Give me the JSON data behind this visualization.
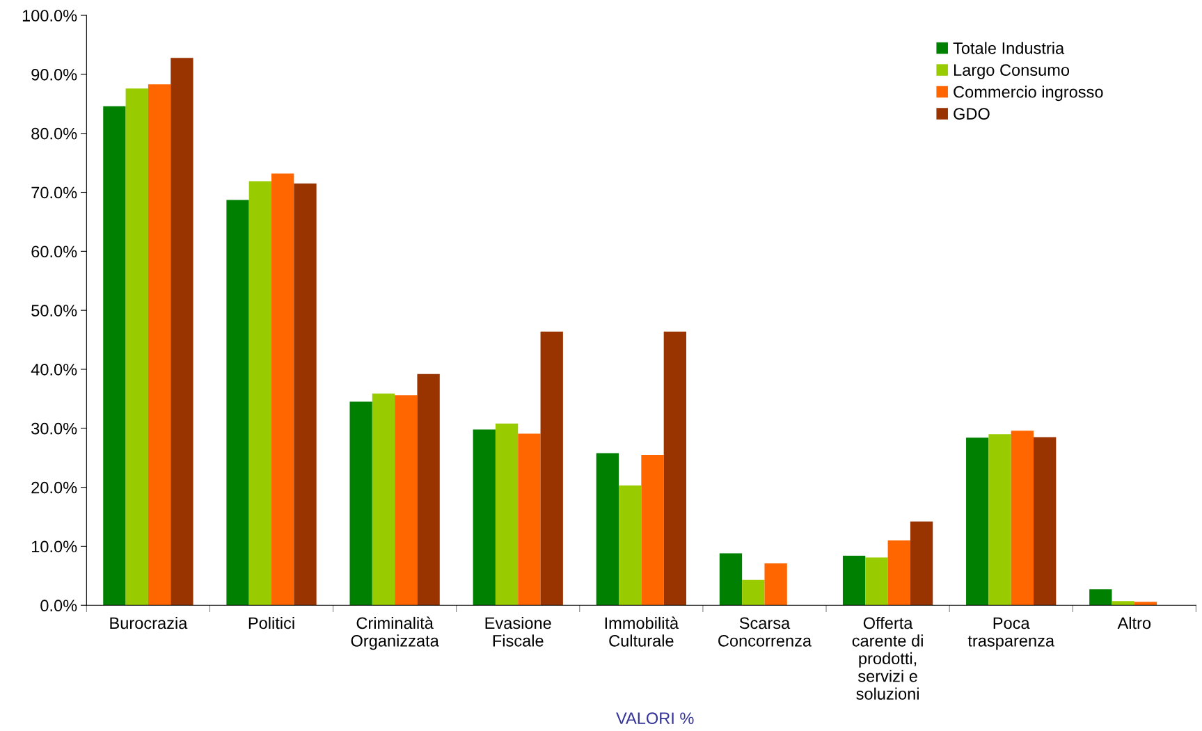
{
  "chart_data": {
    "type": "bar",
    "categories": [
      "Burocrazia",
      "Politici",
      "Criminalità\nOrganizzata",
      "Evasione\nFiscale",
      "Immobilità\nCulturale",
      "Scarsa\nConcorrenza",
      "Offerta\ncarente di\nprodotti,\nservizi e\nsoluzioni",
      "Poca\ntrasparenza",
      "Altro"
    ],
    "series": [
      {
        "name": "Totale Industria",
        "color": "#008000",
        "values": [
          84.6,
          68.7,
          34.5,
          29.8,
          25.8,
          8.8,
          8.4,
          28.4,
          2.7
        ]
      },
      {
        "name": "Largo Consumo",
        "color": "#99cc00",
        "values": [
          87.6,
          71.9,
          35.9,
          30.8,
          20.3,
          4.3,
          8.1,
          29.0,
          0.7
        ]
      },
      {
        "name": "Commercio ingrosso",
        "color": "#ff6600",
        "values": [
          88.3,
          73.2,
          35.6,
          29.1,
          25.5,
          7.1,
          11.0,
          29.6,
          0.6
        ]
      },
      {
        "name": "GDO",
        "color": "#993300",
        "values": [
          92.8,
          71.5,
          39.2,
          46.4,
          46.4,
          null,
          14.2,
          28.5,
          null
        ]
      }
    ],
    "ylim": [
      0,
      100
    ],
    "yticks": [
      {
        "value": 0,
        "label": "0.0%"
      },
      {
        "value": 10,
        "label": "10.0%"
      },
      {
        "value": 20,
        "label": "20.0%"
      },
      {
        "value": 30,
        "label": "30.0%"
      },
      {
        "value": 40,
        "label": "40.0%"
      },
      {
        "value": 50,
        "label": "50.0%"
      },
      {
        "value": 60,
        "label": "60.0%"
      },
      {
        "value": 70,
        "label": "70.0%"
      },
      {
        "value": 80,
        "label": "80.0%"
      },
      {
        "value": 90,
        "label": "90.0%"
      },
      {
        "value": 100,
        "label": "100.0%"
      }
    ],
    "annotations": [
      "VALORI %"
    ],
    "legend": "top right",
    "grid": false
  }
}
